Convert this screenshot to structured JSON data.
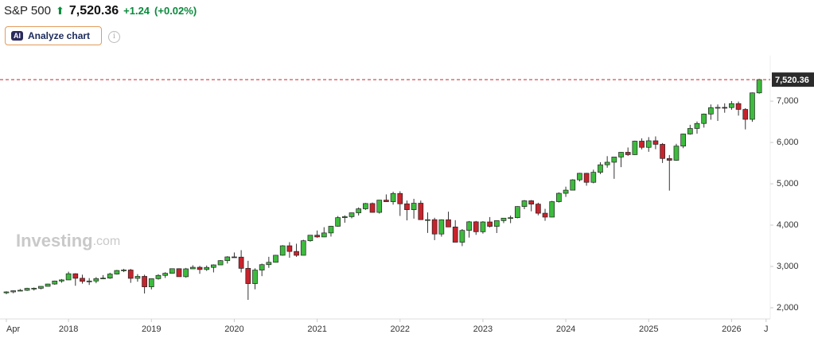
{
  "header": {
    "symbol": "S&P 500",
    "price": "7,520.36",
    "change": "+1.24",
    "change_pct": "(+0.02%)",
    "button": "Analyze chart",
    "button_icon": "AI",
    "watermark": "Investing",
    "watermark_suffix": ".com"
  },
  "chart_data": {
    "type": "candlestick",
    "up_color": "#3dbb3d",
    "down_color": "#c8232c",
    "last_label": "7,520.36",
    "ylim": [
      1730,
      8100
    ],
    "yticks": [
      {
        "value": 2000,
        "label": "2,000"
      },
      {
        "value": 3000,
        "label": "3,000"
      },
      {
        "value": 4000,
        "label": "4,000"
      },
      {
        "value": 5000,
        "label": "5,000"
      },
      {
        "value": 6000,
        "label": "6,000"
      },
      {
        "value": 7000,
        "label": "7,000"
      }
    ],
    "xticks": [
      {
        "value": 0,
        "label": "Apr"
      },
      {
        "value": 9,
        "label": "2018"
      },
      {
        "value": 21,
        "label": "2019"
      },
      {
        "value": 33,
        "label": "2020"
      },
      {
        "value": 45,
        "label": "2021"
      },
      {
        "value": 57,
        "label": "2022"
      },
      {
        "value": 69,
        "label": "2023"
      },
      {
        "value": 81,
        "label": "2024"
      },
      {
        "value": 93,
        "label": "2025"
      },
      {
        "value": 105,
        "label": "2026"
      },
      {
        "value": 110,
        "label": "J"
      }
    ],
    "open": [
      2362,
      2384,
      2412,
      2423,
      2470,
      2472,
      2519,
      2575,
      2648,
      2674,
      2824,
      2714,
      2641,
      2648,
      2705,
      2718,
      2816,
      2902,
      2914,
      2712,
      2760,
      2507,
      2704,
      2784,
      2834,
      2946,
      2752,
      2942,
      2980,
      2926,
      2977,
      3038,
      3141,
      3231,
      3226,
      2954,
      2585,
      2912,
      3044,
      3100,
      3271,
      3500,
      3363,
      3270,
      3622,
      3756,
      3714,
      3811,
      3973,
      4181,
      4204,
      4298,
      4395,
      4523,
      4308,
      4605,
      4567,
      4766,
      4516,
      4374,
      4530,
      4132,
      4132,
      3785,
      4130,
      3955,
      3586,
      3872,
      4080,
      3840,
      4077,
      3970,
      4109,
      4169,
      4180,
      4450,
      4589,
      4508,
      4288,
      4194,
      4568,
      4770,
      4846,
      5096,
      5254,
      5036,
      5278,
      5460,
      5522,
      5648,
      5762,
      5705,
      6032,
      5882,
      6041,
      5955,
      5612,
      5569,
      5912,
      6205,
      6339,
      6460,
      6688,
      6840,
      6849,
      6845,
      6940,
      6800,
      6560,
      7200
    ],
    "high": [
      2398,
      2418,
      2454,
      2484,
      2491,
      2519,
      2582,
      2657,
      2695,
      2873,
      2835,
      2801,
      2718,
      2742,
      2791,
      2848,
      2916,
      2941,
      2940,
      2815,
      2800,
      2708,
      2813,
      2860,
      2949,
      2954,
      2964,
      3028,
      3014,
      3022,
      3050,
      3154,
      3248,
      3338,
      3394,
      3137,
      2955,
      3068,
      3233,
      3280,
      3515,
      3588,
      3550,
      3646,
      3760,
      3870,
      3950,
      3983,
      4219,
      4238,
      4302,
      4429,
      4537,
      4546,
      4608,
      4743,
      4808,
      4819,
      4595,
      4637,
      4594,
      4307,
      4178,
      4140,
      4325,
      4120,
      3905,
      4100,
      4101,
      4095,
      4195,
      4110,
      4170,
      4232,
      4458,
      4607,
      4607,
      4542,
      4394,
      4587,
      4793,
      4931,
      5111,
      5265,
      5264,
      5342,
      5523,
      5669,
      5651,
      5768,
      5878,
      6044,
      6100,
      6129,
      6147,
      5986,
      5696,
      5968,
      6215,
      6427,
      6508,
      6700,
      6920,
      6920,
      6945,
      7002,
      6990,
      6830,
      7210,
      7540
    ],
    "low": [
      2328,
      2352,
      2406,
      2407,
      2417,
      2446,
      2515,
      2557,
      2605,
      2674,
      2533,
      2585,
      2553,
      2594,
      2691,
      2699,
      2803,
      2864,
      2603,
      2631,
      2346,
      2444,
      2681,
      2722,
      2830,
      2750,
      2729,
      2940,
      2822,
      2892,
      2856,
      3036,
      3070,
      3214,
      2855,
      2192,
      2447,
      2766,
      2966,
      3095,
      3260,
      3210,
      3233,
      3268,
      3600,
      3695,
      3710,
      3723,
      3960,
      4057,
      4165,
      4233,
      4368,
      4306,
      4279,
      4561,
      4495,
      4222,
      4115,
      4157,
      4132,
      3811,
      3637,
      3721,
      3955,
      3585,
      3492,
      3699,
      3764,
      3794,
      3943,
      3809,
      4049,
      4048,
      4166,
      4385,
      4335,
      4238,
      4104,
      4190,
      4547,
      4683,
      4845,
      5057,
      4954,
      5012,
      5234,
      5390,
      5120,
      5403,
      5674,
      5696,
      5832,
      5774,
      5837,
      5504,
      4835,
      5556,
      5862,
      6188,
      6212,
      6360,
      6550,
      6521,
      6720,
      6790,
      6650,
      6316,
      6500,
      7180
    ],
    "close": [
      2384,
      2412,
      2423,
      2470,
      2472,
      2519,
      2575,
      2648,
      2674,
      2824,
      2714,
      2641,
      2648,
      2705,
      2718,
      2816,
      2902,
      2914,
      2712,
      2760,
      2507,
      2704,
      2784,
      2834,
      2946,
      2752,
      2942,
      2980,
      2926,
      2977,
      3038,
      3141,
      3231,
      3226,
      2954,
      2585,
      2912,
      3044,
      3100,
      3271,
      3500,
      3363,
      3270,
      3622,
      3756,
      3714,
      3811,
      3973,
      4181,
      4204,
      4298,
      4395,
      4523,
      4308,
      4605,
      4567,
      4766,
      4516,
      4374,
      4530,
      4132,
      4132,
      3785,
      4130,
      3955,
      3586,
      3872,
      4080,
      3840,
      4077,
      3970,
      4109,
      4169,
      4180,
      4450,
      4589,
      4508,
      4288,
      4194,
      4568,
      4770,
      4846,
      5096,
      5254,
      5036,
      5278,
      5460,
      5522,
      5648,
      5762,
      5705,
      6032,
      5882,
      6041,
      5955,
      5612,
      5569,
      5912,
      6205,
      6339,
      6460,
      6688,
      6840,
      6849,
      6845,
      6940,
      6800,
      6560,
      7200,
      7520.36
    ]
  }
}
